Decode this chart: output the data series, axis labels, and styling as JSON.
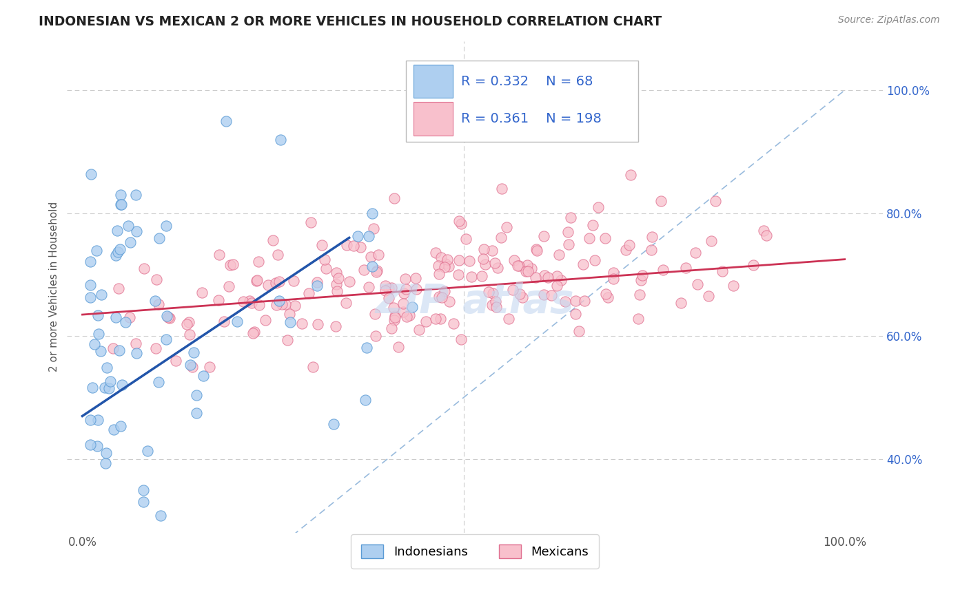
{
  "title": "INDONESIAN VS MEXICAN 2 OR MORE VEHICLES IN HOUSEHOLD CORRELATION CHART",
  "source": "Source: ZipAtlas.com",
  "ylabel": "2 or more Vehicles in Household",
  "xlim": [
    -0.02,
    1.05
  ],
  "ylim": [
    0.28,
    1.08
  ],
  "x_ticks": [
    0.0,
    0.25,
    0.5,
    0.75,
    1.0
  ],
  "x_tick_labels": [
    "0.0%",
    "",
    "",
    "",
    "100.0%"
  ],
  "y_ticks_right": [
    0.4,
    0.6,
    0.8,
    1.0
  ],
  "y_tick_labels_right": [
    "40.0%",
    "60.0%",
    "80.0%",
    "100.0%"
  ],
  "indonesian_fill": "#aecff0",
  "indonesian_edge": "#5b9bd5",
  "mexican_fill": "#f8c0cc",
  "mexican_edge": "#e07090",
  "indonesian_line_color": "#2255aa",
  "mexican_line_color": "#cc3355",
  "diagonal_color": "#99bbdd",
  "R_indonesian": 0.332,
  "N_indonesian": 68,
  "R_mexican": 0.361,
  "N_mexican": 198,
  "legend_text_color": "#3366cc",
  "watermark_color": "#c5d8f0",
  "background_color": "#ffffff",
  "grid_color": "#cccccc",
  "title_color": "#222222",
  "source_color": "#888888",
  "ylabel_color": "#555555",
  "tick_color": "#555555",
  "ind_line_x0": 0.0,
  "ind_line_y0": 0.47,
  "ind_line_x1": 0.35,
  "ind_line_y1": 0.76,
  "mex_line_x0": 0.0,
  "mex_line_y0": 0.635,
  "mex_line_x1": 1.0,
  "mex_line_y1": 0.725
}
